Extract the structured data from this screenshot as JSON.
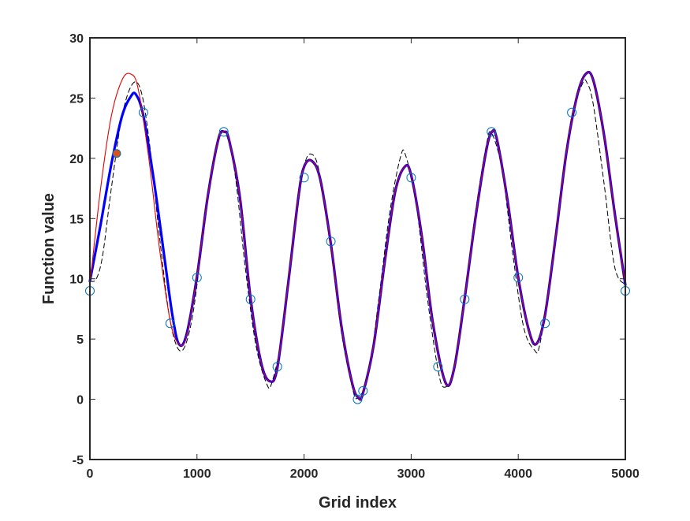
{
  "chart_data": {
    "type": "line",
    "title": "",
    "xlabel": "Grid index",
    "ylabel": "Function value",
    "xlim": [
      0,
      5000
    ],
    "ylim": [
      -5,
      30
    ],
    "xticks": [
      0,
      1000,
      2000,
      3000,
      4000,
      5000
    ],
    "yticks": [
      -5,
      0,
      5,
      10,
      15,
      20,
      25,
      30
    ],
    "grid": false,
    "legend": "none",
    "series": [
      {
        "color": "#e60000",
        "style": "solid-thin",
        "x": [
          0,
          100,
          200,
          300,
          380,
          450,
          550,
          650,
          750,
          830,
          900,
          1000,
          1100,
          1200,
          1255,
          1300,
          1400,
          1500,
          1600,
          1680,
          1750,
          1850,
          1950,
          2000,
          2070,
          2150,
          2250,
          2350,
          2450,
          2510,
          2550,
          2650,
          2750,
          2850,
          2940,
          3000,
          3100,
          3200,
          3320,
          3400,
          3500,
          3600,
          3700,
          3755,
          3800,
          3900,
          4000,
          4100,
          4170,
          4250,
          4350,
          4450,
          4550,
          4630,
          4700,
          4800,
          4900,
          5000
        ],
        "y": [
          9.5,
          17.5,
          23.5,
          26.5,
          27.0,
          25.8,
          20.0,
          12.5,
          6.5,
          4.6,
          5.2,
          10.2,
          16.8,
          21.6,
          22.2,
          21.5,
          16.8,
          8.4,
          3.0,
          1.5,
          2.6,
          9.5,
          17.0,
          19.3,
          19.8,
          18.3,
          12.9,
          6.0,
          1.3,
          0.1,
          0.5,
          4.5,
          11.2,
          17.2,
          19.3,
          18.6,
          13.5,
          6.5,
          1.4,
          2.5,
          8.4,
          15.0,
          20.6,
          22.2,
          21.6,
          16.5,
          10.1,
          5.7,
          4.6,
          7.0,
          13.5,
          20.5,
          25.2,
          27.0,
          26.5,
          22.0,
          15.5,
          9.5
        ]
      },
      {
        "color": "#0000ff",
        "style": "solid-thick",
        "x": [
          0,
          100,
          200,
          300,
          380,
          430,
          500,
          600,
          700,
          770,
          830,
          900,
          1000,
          1100,
          1200,
          1255,
          1300,
          1400,
          1500,
          1600,
          1680,
          1750,
          1850,
          1950,
          2000,
          2070,
          2150,
          2250,
          2350,
          2450,
          2510,
          2550,
          2650,
          2750,
          2850,
          2940,
          3000,
          3100,
          3200,
          3320,
          3400,
          3500,
          3600,
          3700,
          3755,
          3800,
          3900,
          4000,
          4100,
          4170,
          4250,
          4350,
          4450,
          4550,
          4630,
          4700,
          4800,
          4900,
          5000
        ],
        "y": [
          9.8,
          14.5,
          19.5,
          23.5,
          25.1,
          25.3,
          23.5,
          18.0,
          11.5,
          7.0,
          4.6,
          5.3,
          10.2,
          16.8,
          21.6,
          22.2,
          21.5,
          16.8,
          8.4,
          3.0,
          1.5,
          2.6,
          9.5,
          17.0,
          19.3,
          19.8,
          18.3,
          12.9,
          6.0,
          1.3,
          0.1,
          0.5,
          4.5,
          11.2,
          17.2,
          19.3,
          18.6,
          13.5,
          6.5,
          1.4,
          2.5,
          8.4,
          15.0,
          20.6,
          22.2,
          21.6,
          16.5,
          10.1,
          5.7,
          4.6,
          7.0,
          13.5,
          20.5,
          25.2,
          27.0,
          26.5,
          22.0,
          15.5,
          9.5
        ]
      },
      {
        "color": "#000000",
        "style": "dashed",
        "x": [
          0,
          60,
          120,
          200,
          300,
          400,
          480,
          560,
          650,
          750,
          850,
          950,
          1050,
          1150,
          1250,
          1350,
          1450,
          1550,
          1650,
          1700,
          1800,
          1900,
          2000,
          2080,
          2150,
          2250,
          2350,
          2450,
          2500,
          2600,
          2700,
          2800,
          2900,
          2950,
          3050,
          3150,
          3250,
          3310,
          3400,
          3500,
          3600,
          3700,
          3750,
          3850,
          3950,
          4050,
          4150,
          4200,
          4300,
          4400,
          4500,
          4600,
          4640,
          4700,
          4800,
          4900,
          5000
        ],
        "y": [
          9.8,
          10.0,
          12.0,
          17.5,
          23.5,
          26.2,
          25.5,
          21.0,
          13.5,
          6.5,
          4.0,
          6.5,
          13.0,
          19.5,
          22.2,
          19.0,
          11.0,
          4.5,
          1.3,
          1.4,
          5.5,
          13.0,
          19.3,
          20.3,
          18.5,
          12.5,
          5.5,
          1.0,
          0.1,
          2.0,
          8.5,
          15.5,
          20.1,
          20.2,
          16.0,
          8.5,
          2.5,
          1.0,
          2.5,
          8.5,
          15.5,
          21.0,
          22.1,
          19.0,
          12.0,
          6.0,
          4.1,
          4.5,
          10.0,
          17.5,
          23.5,
          26.2,
          26.3,
          24.5,
          18.0,
          11.0,
          9.5
        ]
      },
      {
        "name": "",
        "color": "#0072bd",
        "style": "circle-markers",
        "x": [
          0,
          500,
          750,
          1000,
          1250,
          1500,
          1750,
          2000,
          2250,
          2500,
          2550,
          3000,
          3250,
          3500,
          3750,
          4000,
          4250,
          4500,
          5000
        ],
        "y": [
          9.0,
          23.8,
          6.3,
          10.1,
          22.2,
          8.3,
          2.7,
          18.4,
          13.1,
          0.0,
          0.7,
          18.4,
          2.7,
          8.3,
          22.2,
          10.1,
          6.3,
          23.8,
          9.0
        ]
      },
      {
        "color": "#d95319",
        "style": "filled-marker",
        "x": [
          250
        ],
        "y": [
          20.4
        ]
      }
    ]
  }
}
